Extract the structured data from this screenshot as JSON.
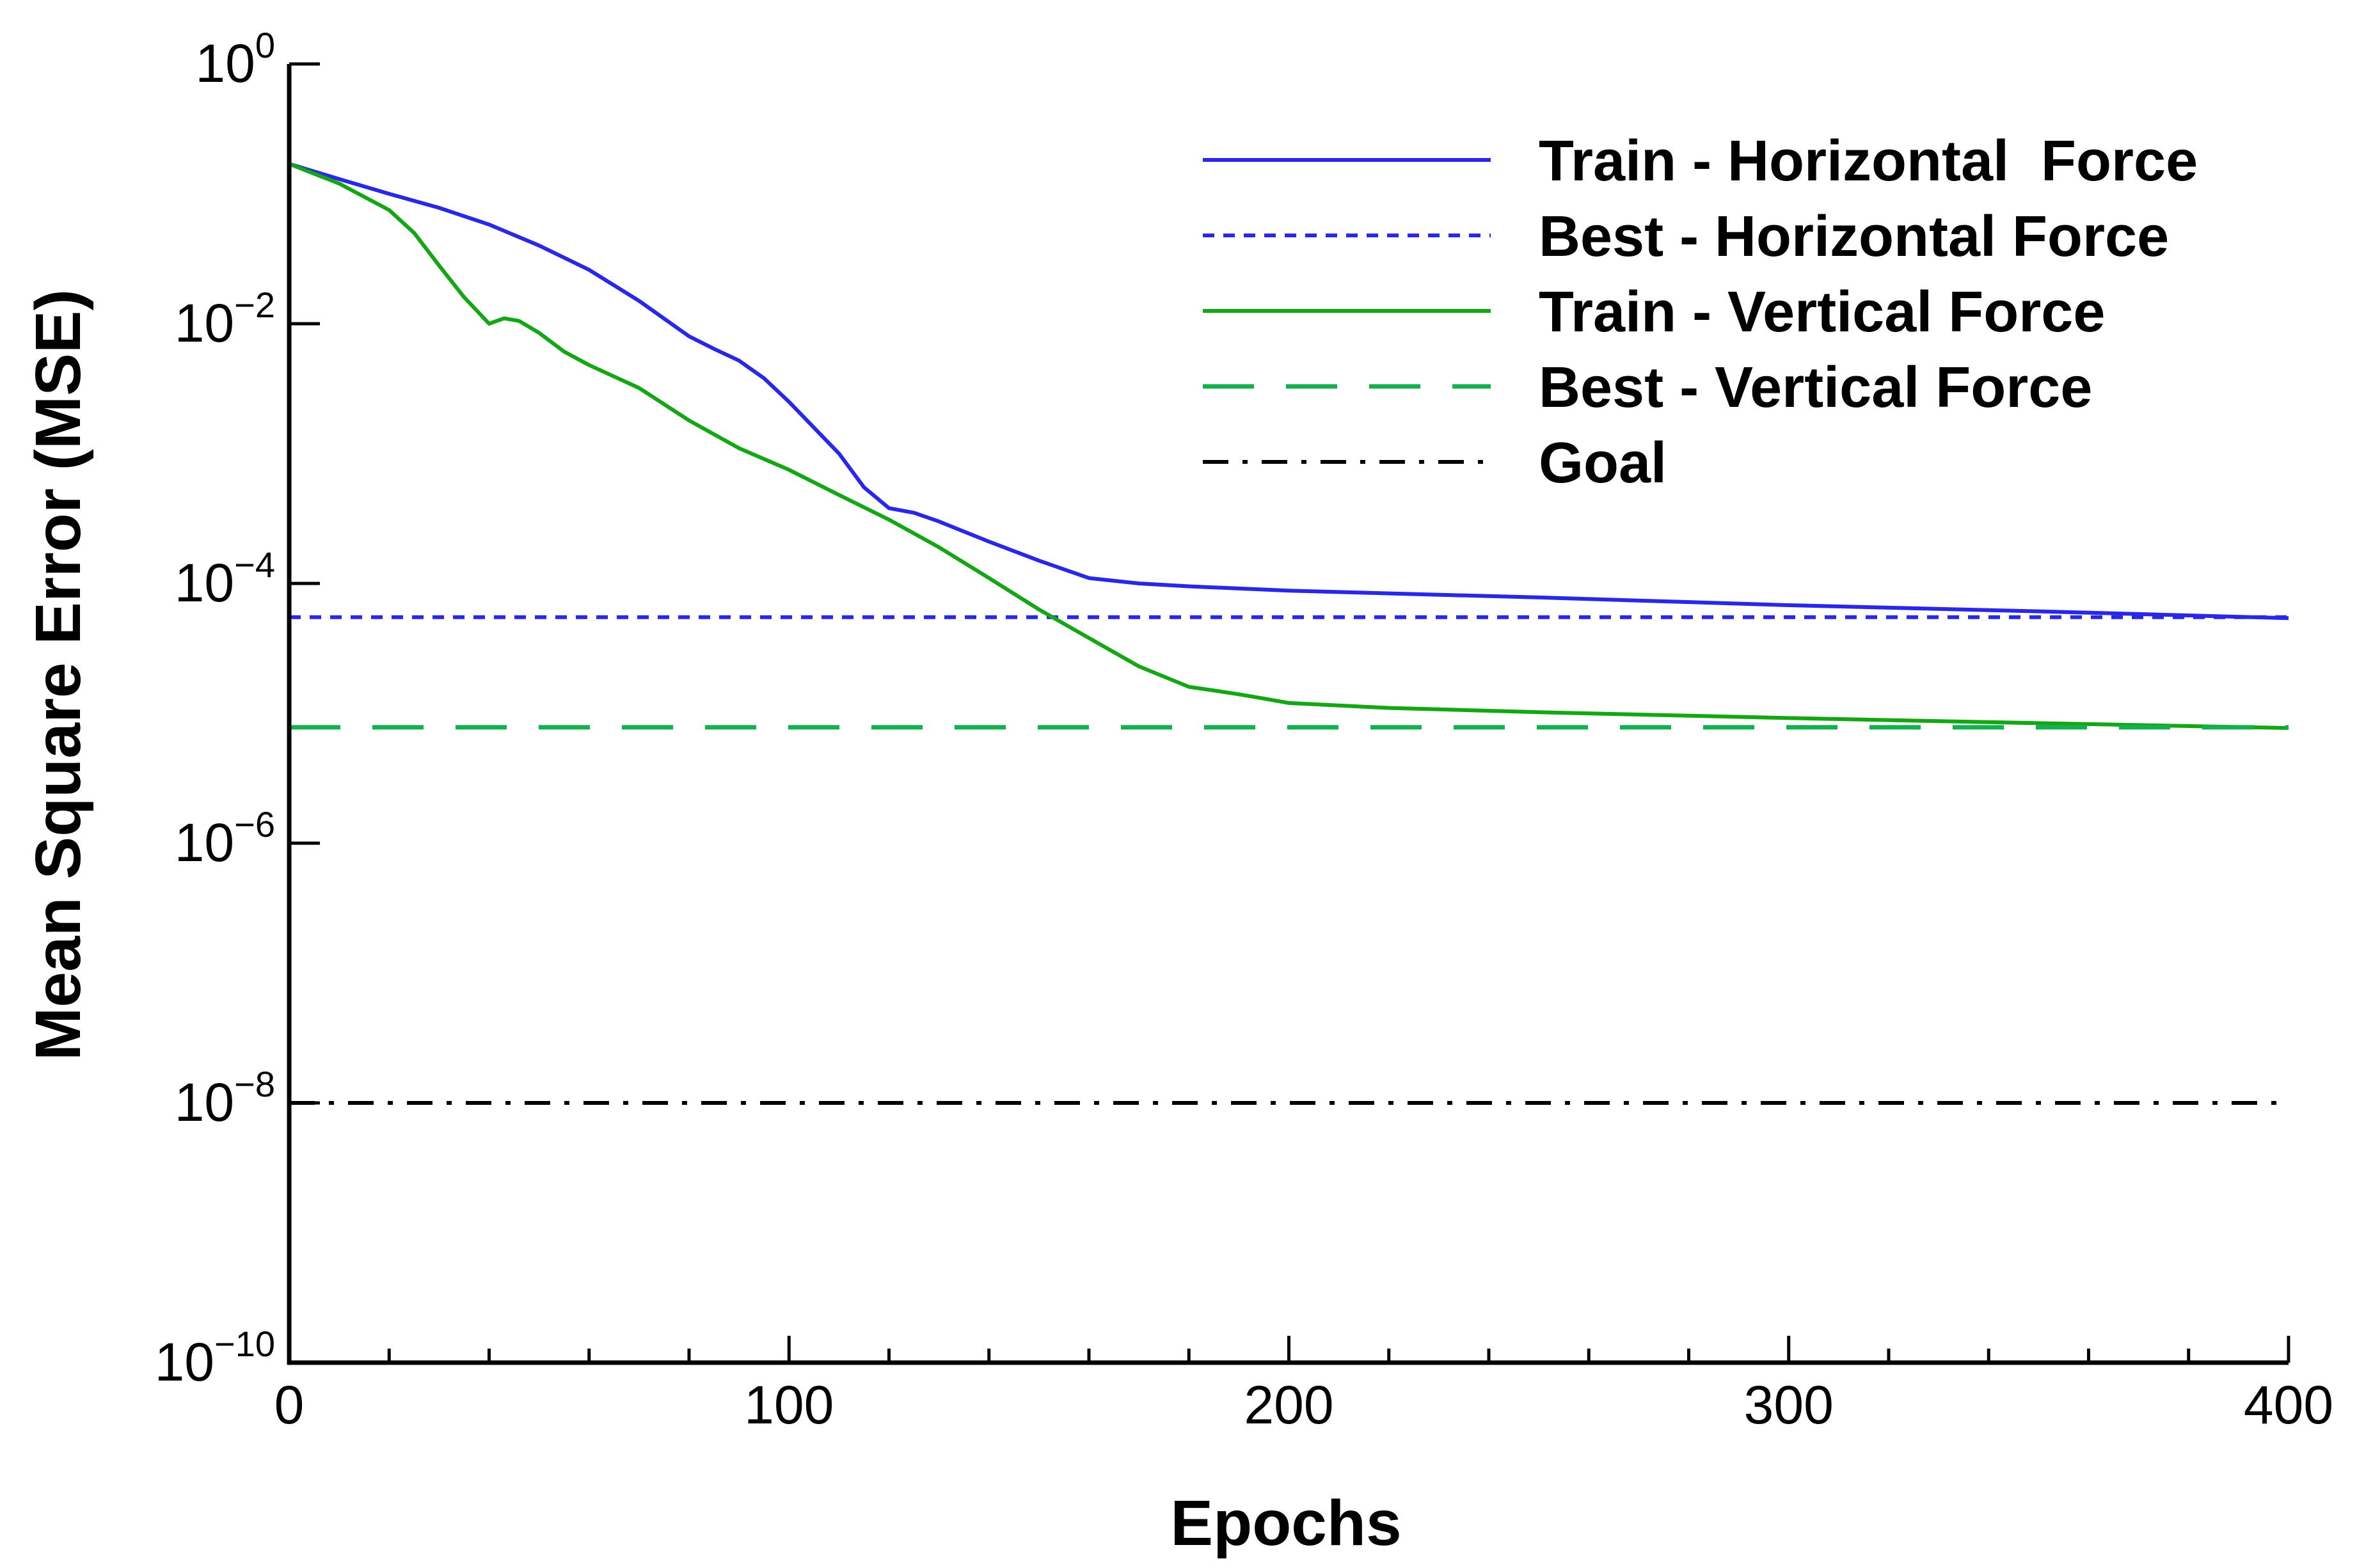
{
  "chart_data": {
    "type": "line",
    "title": "",
    "xlabel": "Epochs",
    "ylabel": "Mean Square Error (MSE)",
    "xlim": [
      0,
      400
    ],
    "ylim": [
      1e-10,
      1
    ],
    "yscale": "log",
    "x_ticks": [
      {
        "value": 0,
        "label": "0"
      },
      {
        "value": 100,
        "label": "100"
      },
      {
        "value": 200,
        "label": "200"
      },
      {
        "value": 300,
        "label": "300"
      },
      {
        "value": 400,
        "label": "400"
      }
    ],
    "y_ticks": [
      {
        "exp": 0,
        "base": "10",
        "sup": "0"
      },
      {
        "exp": -2,
        "base": "10",
        "sup": "−2"
      },
      {
        "exp": -4,
        "base": "10",
        "sup": "−4"
      },
      {
        "exp": -6,
        "base": "10",
        "sup": "−6"
      },
      {
        "exp": -8,
        "base": "10",
        "sup": "−8"
      },
      {
        "exp": -10,
        "base": "10",
        "sup": "−10"
      }
    ],
    "legend_position": "top-right",
    "series": [
      {
        "name": "Train - Horizontal  Force",
        "color": "#2828e6",
        "style": "solid",
        "x": [
          0,
          10,
          20,
          30,
          40,
          50,
          60,
          70,
          80,
          85,
          90,
          95,
          100,
          110,
          115,
          120,
          125,
          130,
          140,
          150,
          160,
          170,
          180,
          200,
          250,
          300,
          350,
          400
        ],
        "y": [
          0.17,
          0.13,
          0.1,
          0.078,
          0.058,
          0.04,
          0.026,
          0.015,
          0.008,
          0.0064,
          0.0052,
          0.0038,
          0.0025,
          0.001,
          0.00055,
          0.00038,
          0.00035,
          0.0003,
          0.00021,
          0.00015,
          0.00011,
          0.0001,
          9.5e-05,
          8.8e-05,
          7.8e-05,
          6.8e-05,
          6.1e-05,
          5.4e-05
        ]
      },
      {
        "name": "Best - Horizontal Force",
        "color": "#2828e6",
        "style": "dotted",
        "x": [
          0,
          400
        ],
        "y": [
          5.5e-05,
          5.5e-05
        ]
      },
      {
        "name": "Train - Vertical Force",
        "color": "#15a615",
        "style": "solid",
        "x": [
          0,
          10,
          20,
          25,
          30,
          35,
          40,
          43,
          46,
          50,
          55,
          60,
          70,
          80,
          90,
          100,
          110,
          120,
          130,
          140,
          150,
          160,
          170,
          180,
          185,
          190,
          195,
          200,
          220,
          250,
          300,
          350,
          400
        ],
        "y": [
          0.17,
          0.12,
          0.075,
          0.05,
          0.028,
          0.016,
          0.01,
          0.011,
          0.0105,
          0.0085,
          0.0061,
          0.0048,
          0.0032,
          0.0018,
          0.0011,
          0.00075,
          0.00048,
          0.00031,
          0.00019,
          0.00011,
          6.3e-05,
          3.8e-05,
          2.3e-05,
          1.6e-05,
          1.5e-05,
          1.4e-05,
          1.3e-05,
          1.2e-05,
          1.1e-05,
          1.02e-05,
          9.2e-06,
          8.4e-06,
          7.7e-06
        ]
      },
      {
        "name": "Best - Vertical Force",
        "color": "#14b050",
        "style": "dashed",
        "x": [
          0,
          400
        ],
        "y": [
          7.8e-06,
          7.8e-06
        ]
      },
      {
        "name": "Goal",
        "color": "#000000",
        "style": "dashdot",
        "x": [
          0,
          400
        ],
        "y": [
          1e-08,
          1e-08
        ]
      }
    ]
  }
}
